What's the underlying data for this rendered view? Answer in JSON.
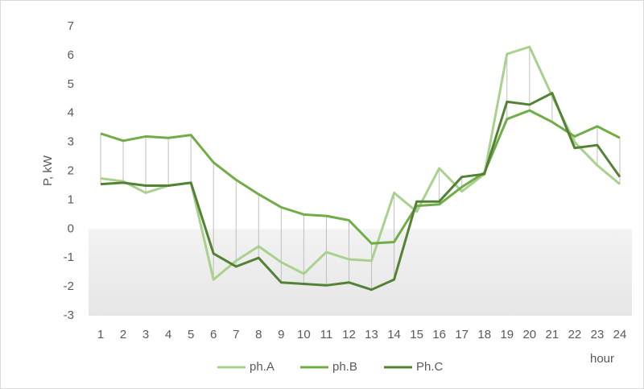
{
  "chart_data": {
    "type": "line",
    "x": [
      1,
      2,
      3,
      4,
      5,
      6,
      7,
      8,
      9,
      10,
      11,
      12,
      13,
      14,
      15,
      16,
      17,
      18,
      19,
      20,
      21,
      22,
      23,
      24
    ],
    "xlim": [
      1,
      24
    ],
    "xticks": [
      1,
      2,
      3,
      4,
      5,
      6,
      7,
      8,
      9,
      10,
      11,
      12,
      13,
      14,
      15,
      16,
      17,
      18,
      19,
      20,
      21,
      22,
      23,
      24
    ],
    "xlabel": "hour",
    "ylabel": "P, kW",
    "ylim": [
      -3,
      7
    ],
    "yticks": [
      -3,
      -2,
      -1,
      0,
      1,
      2,
      3,
      4,
      5,
      6,
      7
    ],
    "legend": "bottom",
    "series": [
      {
        "name": "ph.A",
        "color": "#a9d18e",
        "values": [
          1.75,
          1.65,
          1.25,
          1.5,
          1.6,
          -1.75,
          -1.1,
          -0.6,
          -1.15,
          -1.55,
          -0.8,
          -1.05,
          -1.1,
          1.25,
          0.6,
          2.1,
          1.3,
          1.9,
          6.05,
          6.3,
          4.6,
          3.0,
          2.2,
          1.55
        ]
      },
      {
        "name": "ph.B",
        "color": "#70ad47",
        "values": [
          3.3,
          3.05,
          3.2,
          3.15,
          3.25,
          2.3,
          1.7,
          1.2,
          0.75,
          0.5,
          0.45,
          0.3,
          -0.5,
          -0.45,
          0.8,
          0.85,
          1.45,
          1.95,
          3.8,
          4.1,
          3.7,
          3.2,
          3.55,
          3.15
        ]
      },
      {
        "name": "Ph.C",
        "color": "#548235",
        "values": [
          1.55,
          1.6,
          1.5,
          1.5,
          1.6,
          -0.85,
          -1.3,
          -1.0,
          -1.85,
          -1.9,
          -1.95,
          -1.85,
          -2.1,
          -1.75,
          0.95,
          0.95,
          1.8,
          1.9,
          4.4,
          4.3,
          4.7,
          2.8,
          2.9,
          1.8
        ]
      }
    ]
  }
}
